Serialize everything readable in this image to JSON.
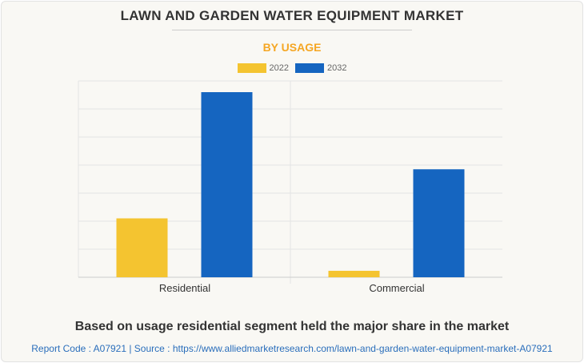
{
  "title": "LAWN AND GARDEN WATER EQUIPMENT MARKET",
  "subtitle": "BY USAGE",
  "caption": "Based on usage residential segment held the major share in the market",
  "footer": "Report Code : A07921  |  Source : https://www.alliedmarketresearch.com/lawn-and-garden-water-equipment-market-A07921",
  "chart_data": {
    "type": "bar",
    "categories": [
      "Residential",
      "Commercial"
    ],
    "series": [
      {
        "name": "2022",
        "color": "#f4c430",
        "values": [
          2.1,
          0.23
        ]
      },
      {
        "name": "2032",
        "color": "#1565c0",
        "values": [
          6.6,
          3.85
        ]
      }
    ],
    "ylim": [
      0,
      7
    ],
    "grid": true,
    "y_tick_labels_shown": false,
    "legend": "top-center"
  }
}
